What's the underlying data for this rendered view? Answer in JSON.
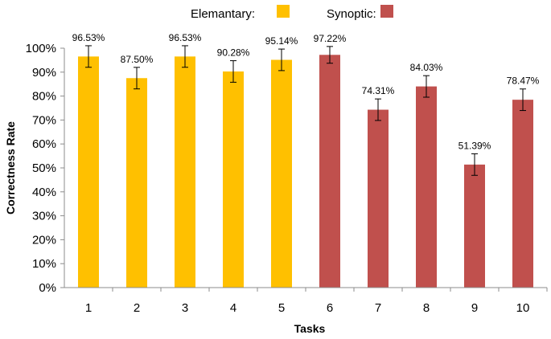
{
  "chart_data": {
    "type": "bar",
    "xlabel": "Tasks",
    "ylabel": "Correctness Rate",
    "ylim": [
      0,
      100
    ],
    "y_ticks": [
      "0%",
      "10%",
      "20%",
      "30%",
      "40%",
      "50%",
      "60%",
      "70%",
      "80%",
      "90%",
      "100%"
    ],
    "grid": false,
    "legend_position": "top-center",
    "legend": [
      {
        "name": "Elemantary:",
        "color": "#FFC000"
      },
      {
        "name": "Synoptic:",
        "color": "#C0504D"
      }
    ],
    "categories": [
      "1",
      "2",
      "3",
      "4",
      "5",
      "6",
      "7",
      "8",
      "9",
      "10"
    ],
    "values": [
      96.53,
      87.5,
      96.53,
      90.28,
      95.14,
      97.22,
      74.31,
      84.03,
      51.39,
      78.47
    ],
    "value_labels": [
      "96.53%",
      "87.50%",
      "96.53%",
      "90.28%",
      "95.14%",
      "97.22%",
      "74.31%",
      "84.03%",
      "51.39%",
      "78.47%"
    ],
    "error": [
      4.5,
      4.5,
      4.5,
      4.5,
      4.5,
      3.5,
      4.5,
      4.5,
      4.5,
      4.5
    ],
    "group": [
      0,
      0,
      0,
      0,
      0,
      1,
      1,
      1,
      1,
      1
    ],
    "colors": [
      "#FFC000",
      "#C0504D"
    ]
  }
}
